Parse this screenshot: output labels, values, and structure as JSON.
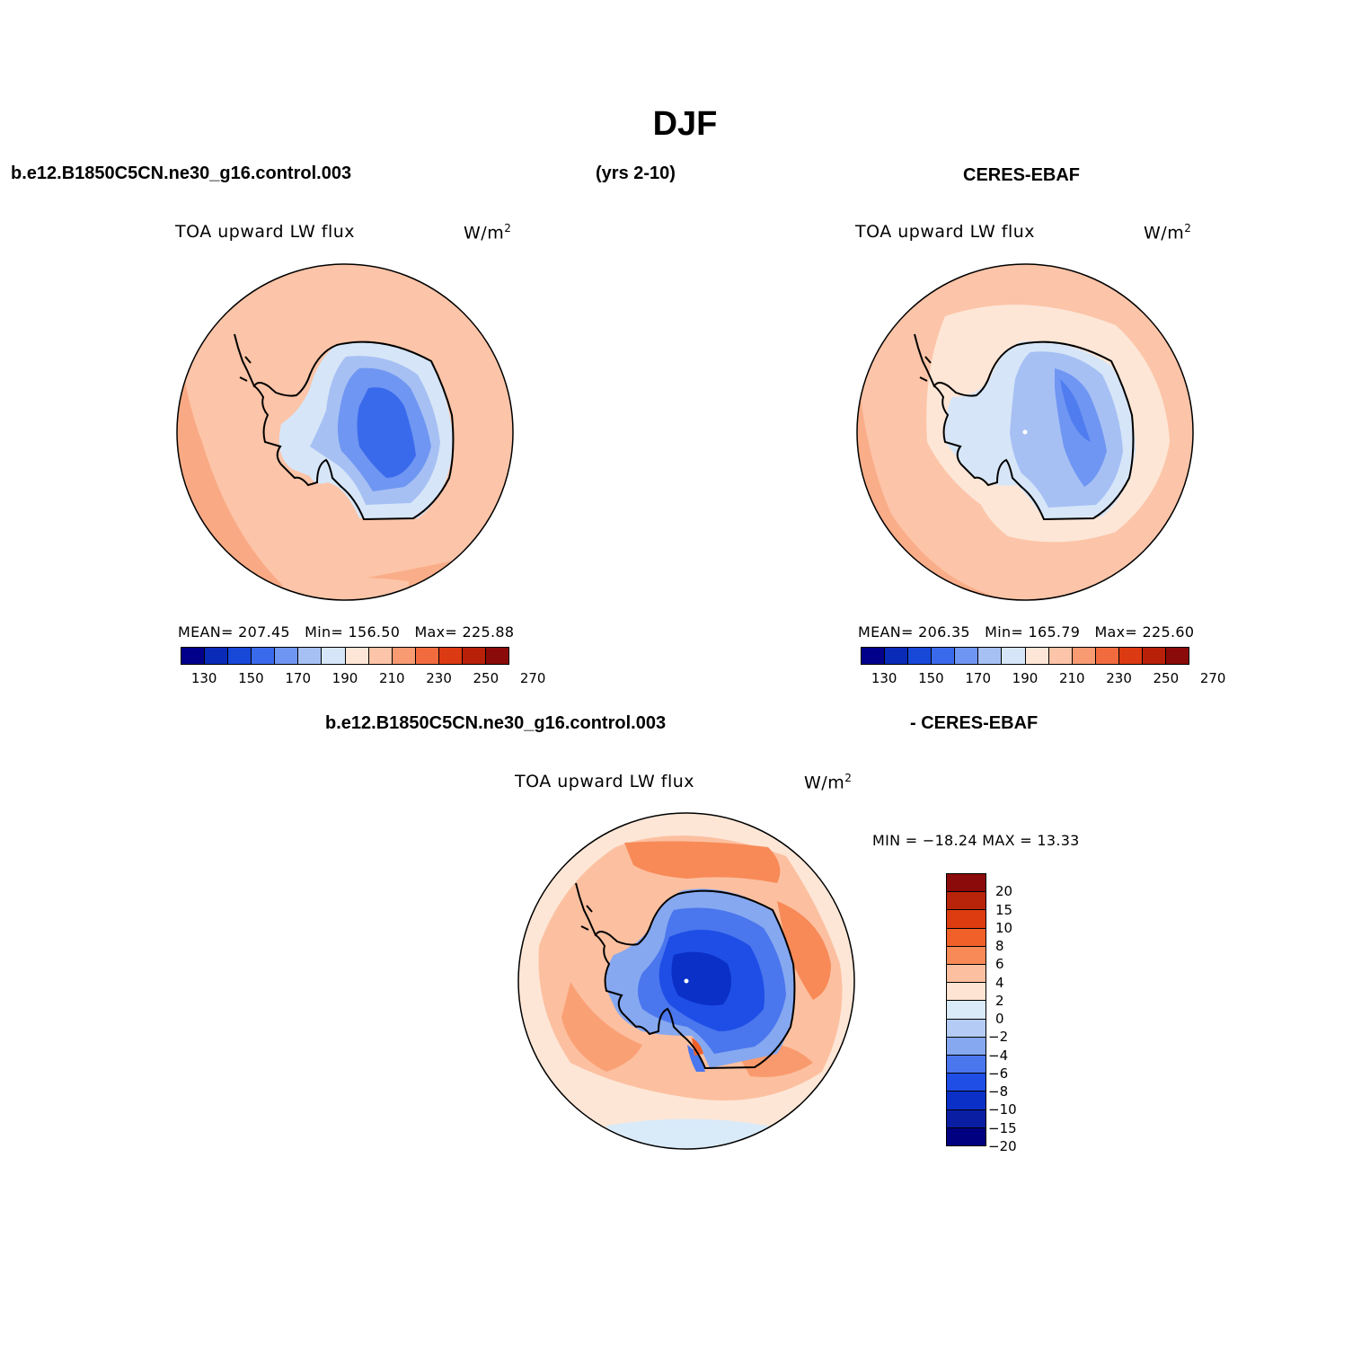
{
  "title": "DJF",
  "header": {
    "case_name": "b.e12.B1850C5CN.ne30_g16.control.003",
    "years": "(yrs 2-10)",
    "obs_name": "CERES-EBAF"
  },
  "panels": {
    "model": {
      "variable": "TOA upward LW flux",
      "units": "W/m",
      "units_sup": "2",
      "stats": {
        "mean_label": "MEAN=",
        "mean": "207.45",
        "min_label": "Min=",
        "min": "156.50",
        "max_label": "Max=",
        "max": "225.88"
      }
    },
    "obs": {
      "variable": "TOA upward LW flux",
      "units": "W/m",
      "units_sup": "2",
      "stats": {
        "mean_label": "MEAN=",
        "mean": "206.35",
        "min_label": "Min=",
        "min": "165.79",
        "max_label": "Max=",
        "max": "225.60"
      }
    },
    "diff": {
      "case_name": "b.e12.B1850C5CN.ne30_g16.control.003",
      "obs_label": "- CERES-EBAF",
      "variable": "TOA upward LW flux",
      "units": "W/m",
      "units_sup": "2",
      "minmax": "MIN = −18.24 MAX =  13.33"
    }
  },
  "colorbar_abs": {
    "colors": [
      "#00008b",
      "#0a2ab8",
      "#1848d8",
      "#3a6aec",
      "#6f96f2",
      "#a7c0f4",
      "#d6e6f8",
      "#fde6d6",
      "#fcc4a8",
      "#f89a72",
      "#f26b3e",
      "#dc3a12",
      "#b8200a",
      "#8b0a0a"
    ],
    "labels": [
      "130",
      "150",
      "170",
      "190",
      "210",
      "230",
      "250",
      "270"
    ]
  },
  "colorbar_diff": {
    "colors": [
      "#8b0a0a",
      "#b8240a",
      "#dc3c10",
      "#f2602a",
      "#f88a58",
      "#fcc0a0",
      "#fee4d2",
      "#d9eaf8",
      "#b4ccf5",
      "#86a8f0",
      "#4a76ee",
      "#1e4ee6",
      "#0a30c8",
      "#0a1ea4",
      "#000080"
    ],
    "labels": [
      "20",
      "15",
      "10",
      "8",
      "6",
      "4",
      "2",
      "0",
      "−2",
      "−4",
      "−6",
      "−8",
      "−10",
      "−15",
      "−20"
    ]
  }
}
